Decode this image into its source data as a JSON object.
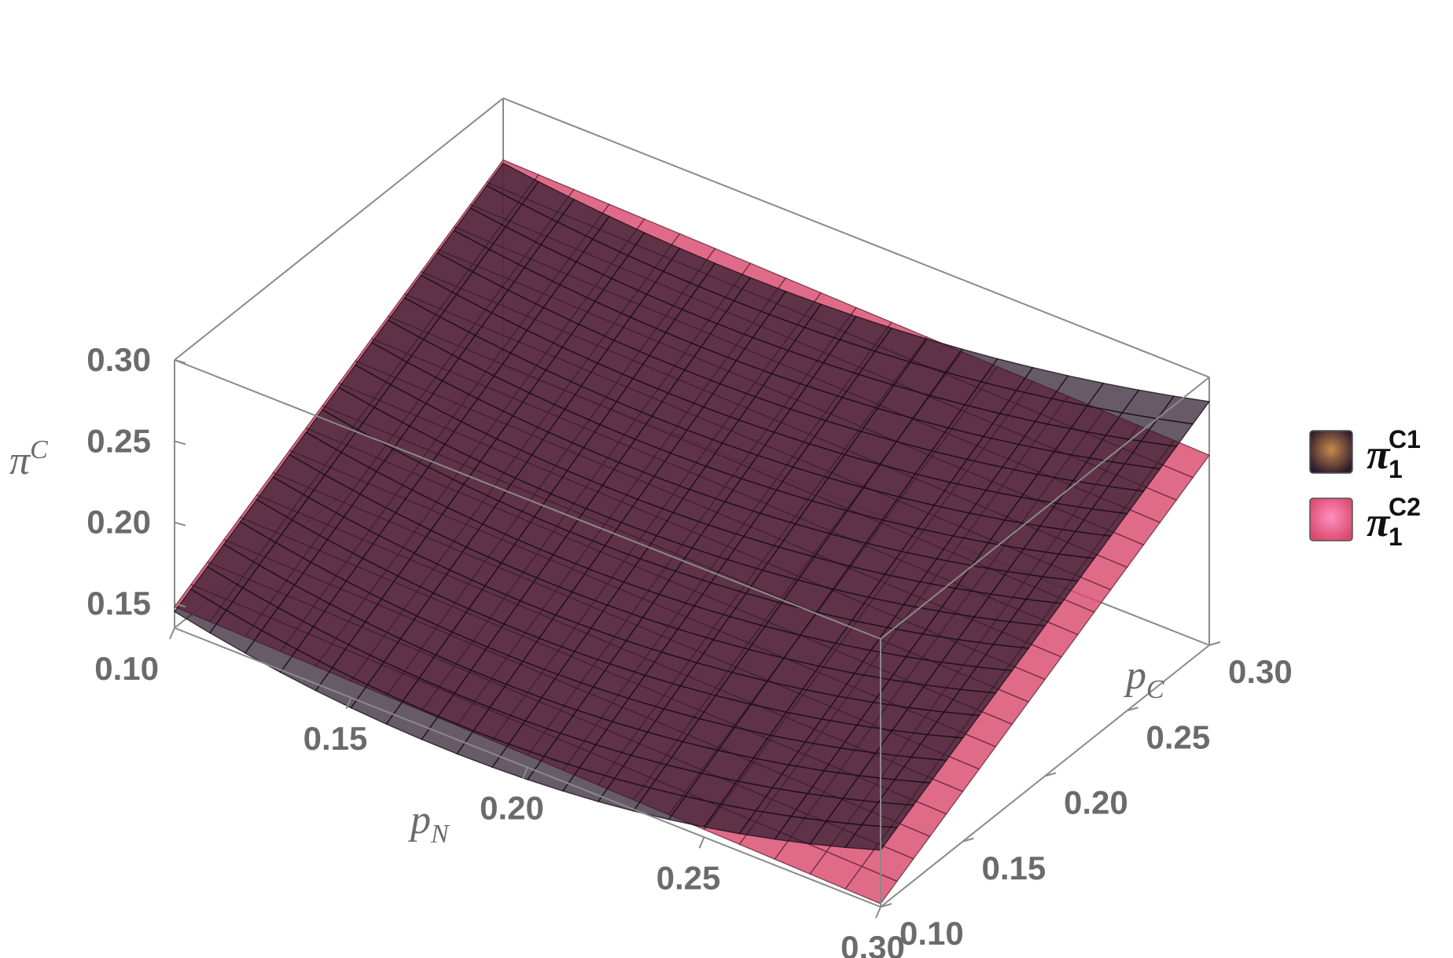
{
  "chart_data": {
    "type": "surface3d",
    "axes": {
      "x": {
        "label": "p",
        "label_sub": "N",
        "range": [
          0.1,
          0.3
        ],
        "ticks": [
          "0.10",
          "0.15",
          "0.20",
          "0.25",
          "0.30"
        ]
      },
      "y": {
        "label": "p",
        "label_sub": "C",
        "range": [
          0.1,
          0.3
        ],
        "ticks": [
          "0.10",
          "0.15",
          "0.20",
          "0.25",
          "0.30"
        ]
      },
      "z": {
        "label": "π",
        "label_sup": "C",
        "range": [
          0.135,
          0.3
        ],
        "ticks": [
          "0.15",
          "0.20",
          "0.25",
          "0.30"
        ]
      }
    },
    "series": [
      {
        "name": "π",
        "name_sup": "C1",
        "name_sub": "1",
        "color": "#2e1c2e",
        "corner_values": {
          "pN0.10_pC0.10": 0.145,
          "pN0.10_pC0.30": 0.26,
          "pN0.30_pC0.10": 0.17,
          "pN0.30_pC0.30": 0.285
        }
      },
      {
        "name": "π",
        "name_sup": "C2",
        "name_sub": "1",
        "color": "#d94a6e",
        "corner_values": {
          "pN0.10_pC0.10": 0.148,
          "pN0.10_pC0.30": 0.262,
          "pN0.30_pC0.10": 0.137,
          "pN0.30_pC0.30": 0.252
        }
      }
    ],
    "legend_position": "right",
    "box": true,
    "mesh": true
  }
}
